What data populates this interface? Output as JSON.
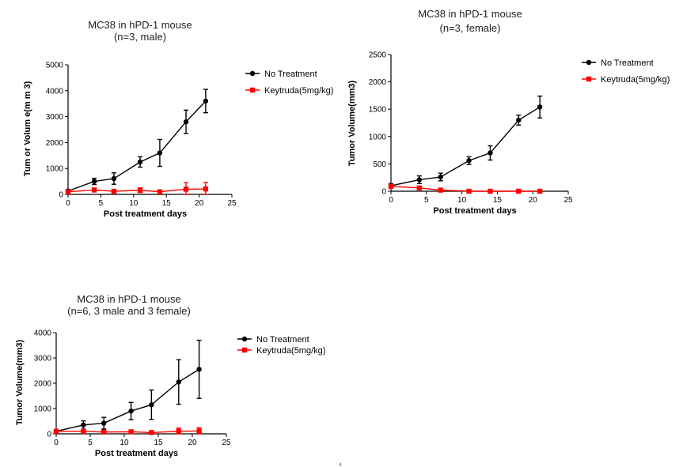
{
  "chart_data": [
    {
      "type": "line",
      "title": [
        "MC38 in hPD-1 mouse",
        "(n=3, male)"
      ],
      "xlabel": "Post treatment days",
      "ylabel": "Tum or Volum e(m m 3)",
      "xlim": [
        0,
        25
      ],
      "ylim": [
        0,
        5000
      ],
      "xticks": [
        "0",
        "5",
        "10",
        "15",
        "20",
        "25"
      ],
      "yticks": [
        "0",
        "1000",
        "2000",
        "3000",
        "4000",
        "5000"
      ],
      "legend": "right",
      "series": [
        {
          "name": "No Treatment",
          "color": "#000000",
          "marker": "circle",
          "x": [
            0,
            4,
            7,
            11,
            14,
            18,
            21
          ],
          "y": [
            130,
            500,
            610,
            1250,
            1600,
            2800,
            3600
          ],
          "err": [
            60,
            120,
            220,
            200,
            520,
            450,
            450
          ]
        },
        {
          "name": "Keytruda(5mg/kg)",
          "color": "#ff0000",
          "marker": "square",
          "x": [
            0,
            4,
            7,
            11,
            14,
            18,
            21
          ],
          "y": [
            100,
            170,
            120,
            160,
            100,
            200,
            210
          ],
          "err": [
            40,
            60,
            50,
            90,
            60,
            250,
            250
          ]
        }
      ]
    },
    {
      "type": "line",
      "title": [
        "MC38 in hPD-1 mouse",
        "(n=3, female)"
      ],
      "xlabel": "Post treatment days",
      "ylabel": "Tumor Volume(mm3)",
      "xlim": [
        0,
        25
      ],
      "ylim": [
        0,
        2500
      ],
      "xticks": [
        "0",
        "5",
        "10",
        "15",
        "20",
        "25"
      ],
      "yticks": [
        "0",
        "500",
        "1000",
        "1500",
        "2000",
        "2500"
      ],
      "legend": "right",
      "series": [
        {
          "name": "No Treatment",
          "color": "#000000",
          "marker": "circle",
          "x": [
            0,
            4,
            7,
            11,
            14,
            18,
            21
          ],
          "y": [
            100,
            210,
            260,
            560,
            700,
            1300,
            1540
          ],
          "err": [
            40,
            70,
            70,
            70,
            130,
            90,
            200
          ]
        },
        {
          "name": "Keytruda(5mg/kg)",
          "color": "#ff0000",
          "marker": "square",
          "x": [
            0,
            4,
            7,
            11,
            14,
            18,
            21
          ],
          "y": [
            90,
            60,
            20,
            0,
            0,
            0,
            0
          ],
          "err": [
            30,
            20,
            10,
            0,
            0,
            0,
            0
          ]
        }
      ]
    },
    {
      "type": "line",
      "title": [
        "MC38 in hPD-1 mouse",
        "(n=6, 3 male and 3 female)"
      ],
      "xlabel": "Post treatment days",
      "ylabel": "Tumor Volume(mm3)",
      "xlim": [
        0,
        25
      ],
      "ylim": [
        0,
        4000
      ],
      "xticks": [
        "0",
        "5",
        "10",
        "15",
        "20",
        "25"
      ],
      "yticks": [
        "0",
        "1000",
        "2000",
        "3000",
        "4000"
      ],
      "legend": "right",
      "series": [
        {
          "name": "No Treatment",
          "color": "#000000",
          "marker": "circle",
          "x": [
            0,
            4,
            7,
            11,
            14,
            18,
            21
          ],
          "y": [
            100,
            350,
            420,
            900,
            1150,
            2050,
            2550
          ],
          "err": [
            40,
            160,
            230,
            340,
            580,
            880,
            1150
          ]
        },
        {
          "name": "Keytruda(5mg/kg)",
          "color": "#ff0000",
          "marker": "square",
          "x": [
            0,
            4,
            7,
            11,
            14,
            18,
            21
          ],
          "y": [
            100,
            100,
            70,
            80,
            50,
            100,
            110
          ],
          "err": [
            40,
            50,
            40,
            60,
            40,
            130,
            130
          ]
        }
      ]
    }
  ],
  "page_number": "4"
}
